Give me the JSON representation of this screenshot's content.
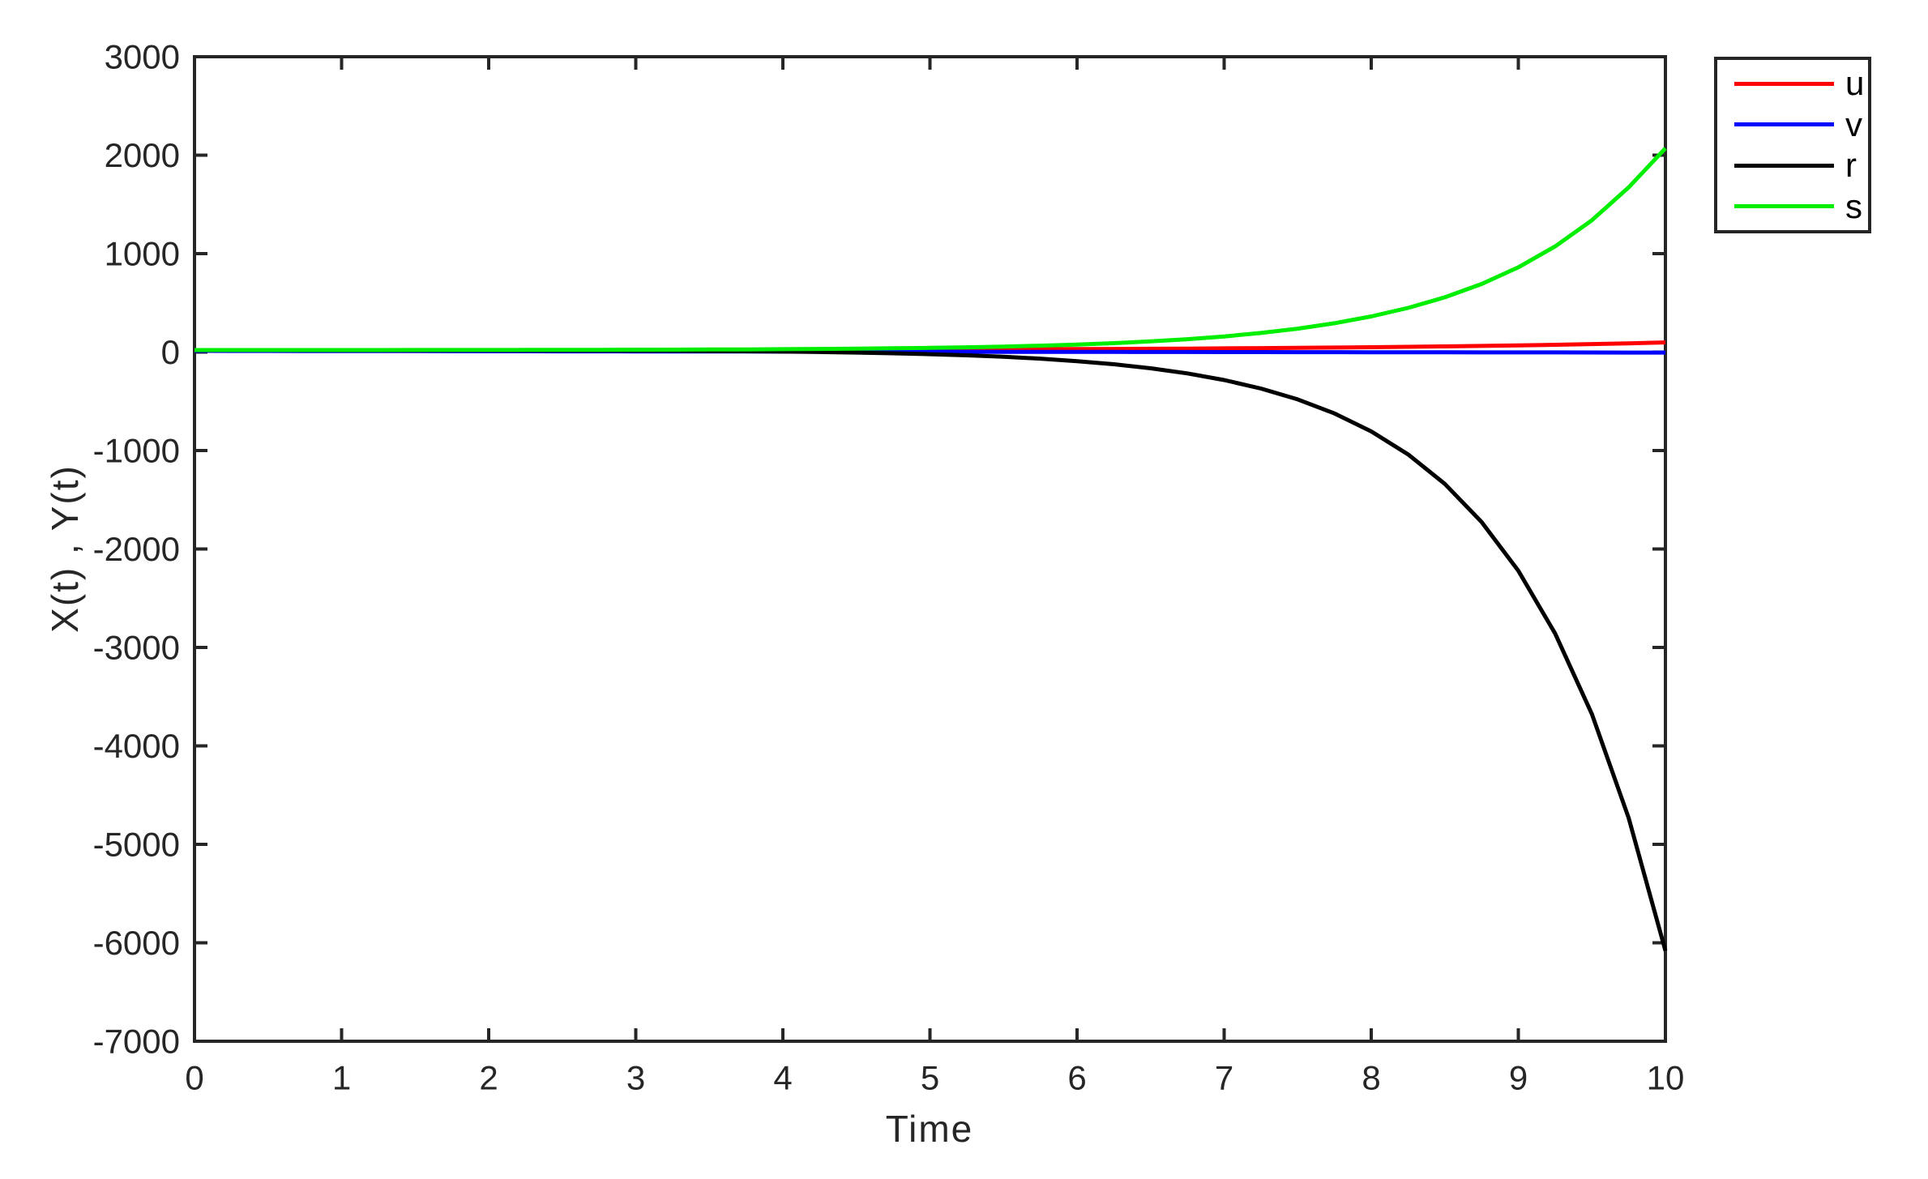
{
  "figure": {
    "background": "#ffffff",
    "axis_color": "#262626",
    "tick_label_color": "#262626"
  },
  "chart_data": {
    "type": "line",
    "title": "",
    "xlabel": "Time",
    "ylabel": "X(t) , Y(t)",
    "xlim": [
      0,
      10
    ],
    "ylim": [
      -7000,
      3000
    ],
    "x_ticks": [
      0,
      1,
      2,
      3,
      4,
      5,
      6,
      7,
      8,
      9,
      10
    ],
    "y_ticks": [
      3000,
      2000,
      1000,
      0,
      -1000,
      -2000,
      -3000,
      -4000,
      -5000,
      -6000,
      -7000
    ],
    "grid": false,
    "box": true,
    "legend_position": "outside-top-right",
    "x": [
      0,
      0.25,
      0.5,
      0.75,
      1,
      1.25,
      1.5,
      1.75,
      2,
      2.25,
      2.5,
      2.75,
      3,
      3.25,
      3.5,
      3.75,
      4,
      4.25,
      4.5,
      4.75,
      5,
      5.25,
      5.5,
      5.75,
      6,
      6.25,
      6.5,
      6.75,
      7,
      7.25,
      7.5,
      7.75,
      8,
      8.25,
      8.5,
      8.75,
      9,
      9.25,
      9.5,
      9.75,
      10
    ],
    "series": [
      {
        "name": "u",
        "color": "#ff0000",
        "values": [
          18.8,
          18.9,
          19.0,
          19.1,
          19.3,
          19.4,
          19.6,
          19.8,
          20.0,
          20.3,
          20.5,
          20.8,
          21.2,
          21.6,
          22.0,
          22.5,
          23.0,
          23.7,
          24.3,
          25.1,
          26.0,
          27.0,
          28.0,
          29.3,
          30.6,
          32.2,
          33.9,
          35.8,
          38.0,
          40.5,
          43.2,
          46.3,
          49.7,
          53.6,
          57.9,
          62.8,
          68.2,
          74.4,
          81.2,
          88.9,
          97.6
        ]
      },
      {
        "name": "v",
        "color": "#0000ff",
        "values": [
          12.0,
          11.6,
          11.2,
          10.7,
          10.3,
          9.9,
          9.5,
          9.0,
          8.6,
          8.2,
          7.8,
          7.3,
          6.9,
          6.5,
          6.1,
          5.6,
          5.2,
          4.8,
          4.4,
          3.9,
          3.5,
          3.1,
          2.7,
          2.2,
          1.8,
          1.4,
          1.0,
          0.5,
          0.1,
          -0.3,
          -0.8,
          -1.2,
          -1.6,
          -2.0,
          -2.5,
          -2.9,
          -3.3,
          -3.7,
          -4.2,
          -4.6,
          -5.0
        ]
      },
      {
        "name": "r",
        "color": "#000000",
        "values": [
          19.7,
          19.6,
          19.5,
          19.4,
          19.2,
          19.0,
          18.8,
          18.4,
          18.0,
          17.4,
          16.6,
          15.7,
          14.4,
          12.9,
          10.8,
          8.2,
          4.9,
          0.6,
          -5.1,
          -12.2,
          -21.1,
          -32.8,
          -47.8,
          -67.0,
          -92.1,
          -123.5,
          -164.2,
          -216.6,
          -283.8,
          -370.0,
          -480.8,
          -623.1,
          -805.9,
          -1038.6,
          -1339.2,
          -1725.1,
          -2221.2,
          -2858.5,
          -3677.4,
          -4730.7,
          -6081.0
        ]
      },
      {
        "name": "s",
        "color": "#00ee00",
        "values": [
          20.3,
          20.3,
          20.4,
          20.5,
          20.6,
          20.8,
          21.0,
          21.2,
          21.5,
          21.9,
          22.4,
          23.0,
          23.8,
          24.8,
          26.0,
          27.5,
          29.3,
          31.7,
          34.7,
          38.4,
          43.0,
          48.8,
          56.1,
          65.2,
          76.5,
          90.8,
          108.7,
          131.1,
          159.1,
          194.2,
          238.1,
          293.0,
          362.0,
          448.3,
          556.3,
          691.7,
          861.3,
          1073.5,
          1339.4,
          1672.4,
          2069.7
        ]
      }
    ],
    "legend": {
      "entries": [
        "u",
        "v",
        "r",
        "s"
      ]
    }
  }
}
